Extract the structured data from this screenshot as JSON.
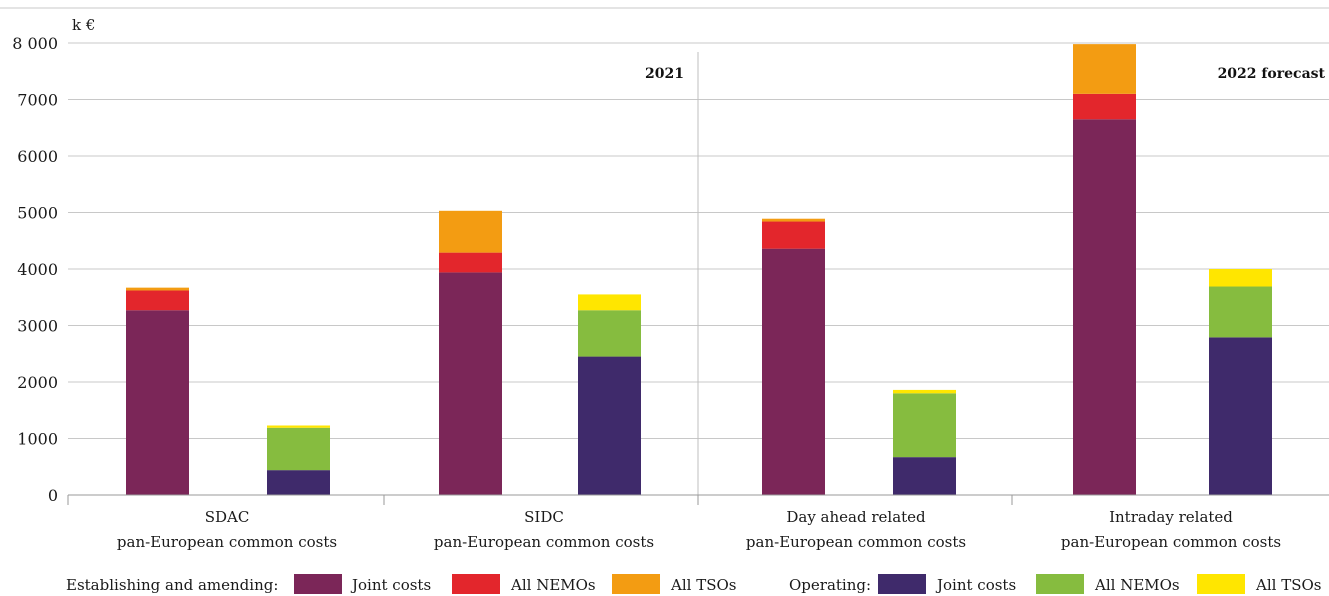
{
  "chart_data": {
    "type": "bar",
    "stacked": true,
    "unit": "k €",
    "ylim": [
      0,
      8000
    ],
    "yticks": [
      0,
      1000,
      2000,
      3000,
      4000,
      5000,
      6000,
      7000,
      8000
    ],
    "ytick_labels": [
      "0",
      "1000",
      "2000",
      "3000",
      "4000",
      "5000",
      "6000",
      "7000",
      "8 000"
    ],
    "grid": true,
    "legend_position": "bottom",
    "panels": [
      {
        "label": "2021"
      },
      {
        "label": "2022 forecast"
      }
    ],
    "categories": [
      {
        "line1": "SDAC",
        "line2": "pan-European common costs"
      },
      {
        "line1": "SIDC",
        "line2": "pan-European common costs"
      },
      {
        "line1": "Day ahead related",
        "line2": "pan-European common costs"
      },
      {
        "line1": "Intraday related",
        "line2": "pan-European common costs"
      }
    ],
    "groups": [
      {
        "label": "Establishing and amending:",
        "series": [
          {
            "name": "Joint costs",
            "color": "#7b2658",
            "values": [
              3270,
              3940,
              4360,
              6650
            ]
          },
          {
            "name": "All NEMOs",
            "color": "#e3262c",
            "values": [
              350,
              350,
              480,
              450
            ]
          },
          {
            "name": "All TSOs",
            "color": "#f39c12",
            "values": [
              50,
              740,
              50,
              880
            ]
          }
        ]
      },
      {
        "label": "Operating:",
        "series": [
          {
            "name": "Joint costs",
            "color": "#3f2a6b",
            "values": [
              440,
              2450,
              670,
              2790
            ]
          },
          {
            "name": "All NEMOs",
            "color": "#86bc3f",
            "values": [
              750,
              820,
              1130,
              900
            ]
          },
          {
            "name": "All TSOs",
            "color": "#ffe600",
            "values": [
              40,
              280,
              60,
              310
            ]
          }
        ]
      }
    ]
  }
}
